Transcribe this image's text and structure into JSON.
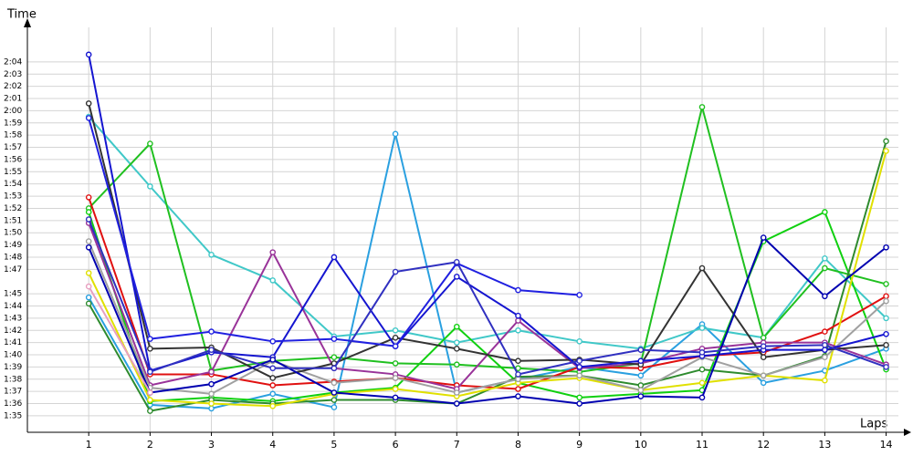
{
  "chart_data": {
    "type": "line",
    "y_label": "Time",
    "x_label": "Laps",
    "x": [
      1,
      2,
      3,
      4,
      5,
      6,
      7,
      8,
      9,
      10,
      11,
      12,
      13,
      14
    ],
    "xlim": [
      0,
      14.2
    ],
    "xticks": [
      1,
      2,
      3,
      4,
      5,
      6,
      7,
      8,
      9,
      10,
      11,
      12,
      13,
      14
    ],
    "ylim": [
      93.65,
      126.83
    ],
    "yticks": [
      {
        "value": 95,
        "label": "1:35"
      },
      {
        "value": 96,
        "label": "1:36"
      },
      {
        "value": 97,
        "label": "1:37"
      },
      {
        "value": 98,
        "label": "1:38"
      },
      {
        "value": 99,
        "label": "1:39"
      },
      {
        "value": 100,
        "label": "1:40"
      },
      {
        "value": 101,
        "label": "1:41"
      },
      {
        "value": 102,
        "label": "1:42"
      },
      {
        "value": 103,
        "label": "1:43"
      },
      {
        "value": 104,
        "label": "1:44"
      },
      {
        "value": 105,
        "label": "1:45"
      },
      {
        "value": 107,
        "label": "1:47"
      },
      {
        "value": 108,
        "label": "1:48"
      },
      {
        "value": 109,
        "label": "1:49"
      },
      {
        "value": 110,
        "label": "1:50"
      },
      {
        "value": 111,
        "label": "1:51"
      },
      {
        "value": 112,
        "label": "1:52"
      },
      {
        "value": 113,
        "label": "1:53"
      },
      {
        "value": 114,
        "label": "1:54"
      },
      {
        "value": 115,
        "label": "1:55"
      },
      {
        "value": 116,
        "label": "1:56"
      },
      {
        "value": 117,
        "label": "1:57"
      },
      {
        "value": 118,
        "label": "1:58"
      },
      {
        "value": 119,
        "label": "1:59"
      },
      {
        "value": 120,
        "label": "2:00"
      },
      {
        "value": 121,
        "label": "2:01"
      },
      {
        "value": 122,
        "label": "2:02"
      },
      {
        "value": 123,
        "label": "2:03"
      },
      {
        "value": 124,
        "label": "2:04"
      }
    ],
    "grid": true,
    "series": [
      {
        "color": "#2aa0e0",
        "values": [
          104.7,
          95.9,
          95.6,
          96.8,
          95.7,
          118.1,
          96.9,
          98.0,
          99.0,
          98.3,
          102.5,
          97.7,
          98.7,
          100.5
        ]
      },
      {
        "color": "#40c8c8",
        "values": [
          119.5,
          113.8,
          108.2,
          106.1,
          101.5,
          102.0,
          101.0,
          102.0,
          101.1,
          100.5,
          102.2,
          101.4,
          107.9,
          103.0
        ]
      },
      {
        "color": "#20c020",
        "values": [
          112.0,
          117.3,
          98.7,
          99.5,
          99.8,
          99.3,
          99.2,
          98.9,
          98.6,
          99.3,
          120.3,
          101.4,
          107.1,
          105.8
        ]
      },
      {
        "color": "#10d010",
        "values": [
          111.7,
          96.2,
          96.5,
          96.2,
          96.9,
          97.3,
          102.3,
          97.7,
          96.5,
          96.8,
          97.1,
          109.3,
          111.7,
          98.8
        ]
      },
      {
        "color": "#2e8b2e",
        "values": [
          104.2,
          95.4,
          96.3,
          96.0,
          96.3,
          96.3,
          96.0,
          98.2,
          98.3,
          97.5,
          98.8,
          98.3,
          99.9,
          117.5
        ]
      },
      {
        "color": "#e01010",
        "values": [
          112.9,
          98.4,
          98.4,
          97.5,
          97.8,
          98.1,
          97.5,
          97.2,
          99.0,
          98.9,
          99.9,
          100.2,
          101.9,
          104.8
        ]
      },
      {
        "color": "#e0e000",
        "values": [
          106.7,
          96.3,
          96.0,
          95.8,
          96.8,
          97.2,
          96.6,
          97.7,
          98.1,
          97.1,
          97.7,
          98.3,
          97.9,
          116.7
        ]
      },
      {
        "color": "#993399",
        "values": [
          110.8,
          97.5,
          98.6,
          108.4,
          98.9,
          98.4,
          97.2,
          102.8,
          98.9,
          99.3,
          100.5,
          101.0,
          101.0,
          99.2
        ]
      },
      {
        "color": "#a0a0a0",
        "values": [
          109.3,
          97.3,
          96.8,
          99.5,
          97.7,
          98.1,
          96.9,
          98.0,
          98.3,
          97.1,
          99.8,
          98.3,
          99.8,
          104.4
        ]
      },
      {
        "color": "#333333",
        "values": [
          120.6,
          100.5,
          100.6,
          98.1,
          99.3,
          101.4,
          100.5,
          99.5,
          99.6,
          99.2,
          107.1,
          99.8,
          100.4,
          100.8
        ]
      },
      {
        "color": "#1515d0",
        "values": [
          124.6,
          98.7,
          100.2,
          99.8,
          108.0,
          100.7,
          106.4,
          103.2,
          99.0,
          99.5,
          99.9,
          100.4,
          100.4,
          101.7
        ]
      },
      {
        "color": "#2020e0",
        "values": [
          119.4,
          101.3,
          101.9,
          101.1,
          101.3,
          100.7,
          107.5,
          105.3,
          104.9,
          null,
          null,
          null,
          null,
          null
        ]
      },
      {
        "color": "#0000b0",
        "values": [
          108.8,
          96.9,
          97.6,
          99.6,
          96.9,
          96.5,
          96.0,
          96.6,
          96.0,
          96.6,
          96.5,
          109.6,
          104.8,
          108.8
        ]
      },
      {
        "color": "#3030c0",
        "values": [
          111.1,
          98.6,
          100.4,
          98.9,
          98.9,
          106.8,
          107.6,
          98.4,
          99.5,
          100.4,
          100.2,
          100.7,
          100.8,
          99.0
        ]
      },
      {
        "color": "#e8a0c0",
        "values": [
          105.6,
          96.9,
          null,
          null,
          null,
          null,
          null,
          null,
          null,
          null,
          null,
          null,
          null,
          null
        ]
      }
    ]
  }
}
